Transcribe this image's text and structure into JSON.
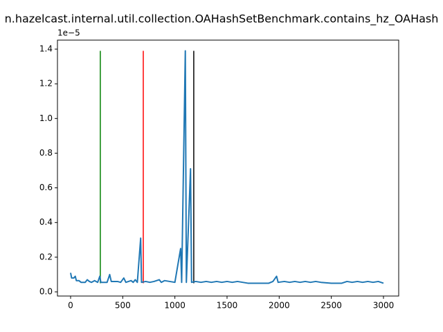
{
  "chart_data": {
    "type": "line",
    "title": "n.hazelcast.internal.util.collection.OAHashSetBenchmark.contains_hz_OAHash",
    "y_offset_label": "1e−5",
    "x": [
      0,
      10,
      30,
      45,
      55,
      80,
      100,
      140,
      160,
      180,
      200,
      230,
      260,
      280,
      290,
      350,
      375,
      390,
      450,
      480,
      510,
      530,
      580,
      600,
      620,
      640,
      672,
      680,
      720,
      760,
      800,
      850,
      870,
      900,
      950,
      1000,
      1055,
      1065,
      1100,
      1110,
      1150,
      1160,
      1200,
      1250,
      1300,
      1350,
      1400,
      1450,
      1500,
      1550,
      1600,
      1650,
      1700,
      1800,
      1900,
      1940,
      1975,
      1990,
      2050,
      2100,
      2150,
      2200,
      2250,
      2300,
      2350,
      2400,
      2500,
      2600,
      2650,
      2700,
      2750,
      2800,
      2850,
      2900,
      2950,
      3000
    ],
    "series": [
      {
        "color": "#1f77b4",
        "values": [
          0.11,
          0.08,
          0.08,
          0.09,
          0.065,
          0.065,
          0.055,
          0.055,
          0.07,
          0.06,
          0.055,
          0.065,
          0.055,
          0.09,
          0.055,
          0.055,
          0.1,
          0.06,
          0.06,
          0.055,
          0.08,
          0.055,
          0.065,
          0.055,
          0.07,
          0.055,
          0.31,
          0.055,
          0.06,
          0.055,
          0.06,
          0.07,
          0.055,
          0.065,
          0.06,
          0.055,
          0.25,
          0.055,
          1.39,
          0.055,
          0.71,
          0.055,
          0.06,
          0.055,
          0.06,
          0.055,
          0.06,
          0.055,
          0.06,
          0.055,
          0.06,
          0.055,
          0.05,
          0.05,
          0.05,
          0.06,
          0.09,
          0.055,
          0.06,
          0.055,
          0.06,
          0.055,
          0.06,
          0.055,
          0.06,
          0.055,
          0.05,
          0.05,
          0.06,
          0.055,
          0.06,
          0.055,
          0.06,
          0.055,
          0.06,
          0.05
        ]
      }
    ],
    "vlines": [
      {
        "x": 285,
        "ymin": 0.05,
        "ymax": 1.39,
        "color": "green"
      },
      {
        "x": 697,
        "ymin": 0.05,
        "ymax": 1.39,
        "color": "red"
      },
      {
        "x": 1181,
        "ymin": 0.05,
        "ymax": 1.39,
        "color": "black"
      }
    ],
    "xlim": [
      -126,
      3146
    ],
    "ylim": [
      -0.024,
      1.452
    ],
    "xticks": [
      0,
      500,
      1000,
      1500,
      2000,
      2500,
      3000
    ],
    "yticks": [
      {
        "value": 0,
        "label": "0.0"
      },
      {
        "value": 0.2,
        "label": "0.2"
      },
      {
        "value": 0.4,
        "label": "0.4"
      },
      {
        "value": 0.6,
        "label": "0.6"
      },
      {
        "value": 0.8,
        "label": "0.8"
      },
      {
        "value": 1.0,
        "label": "1.0"
      },
      {
        "value": 1.2,
        "label": "1.2"
      },
      {
        "value": 1.4,
        "label": "1.4"
      }
    ],
    "grid": false
  }
}
